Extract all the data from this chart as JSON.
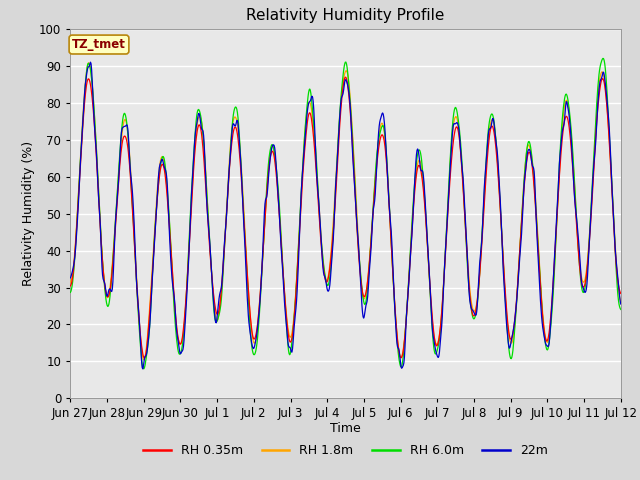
{
  "title": "Relativity Humidity Profile",
  "xlabel": "Time",
  "ylabel": "Relativity Humidity (%)",
  "ylim": [
    0,
    100
  ],
  "annotation_text": "TZ_tmet",
  "annotation_color": "#8B0000",
  "annotation_bg": "#FFFFC0",
  "annotation_border": "#B8860B",
  "bg_color": "#D8D8D8",
  "plot_bg": "#E8E8E8",
  "grid_color": "#FFFFFF",
  "line_colors": {
    "rh035": "#FF0000",
    "rh18": "#FFA500",
    "rh60": "#00DD00",
    "rh22m": "#0000CC"
  },
  "legend_labels": [
    "RH 0.35m",
    "RH 1.8m",
    "RH 6.0m",
    "22m"
  ],
  "xtick_labels": [
    "Jun 27",
    "Jun 28",
    "Jun 29",
    "Jun 30",
    "Jul 1",
    "Jul 2",
    "Jul 3",
    "Jul 4",
    "Jul 5",
    "Jul 6",
    "Jul 7",
    "Jul 8",
    "Jul 9",
    "Jul 10",
    "Jul 11",
    "Jul 12"
  ],
  "n_points": 960
}
